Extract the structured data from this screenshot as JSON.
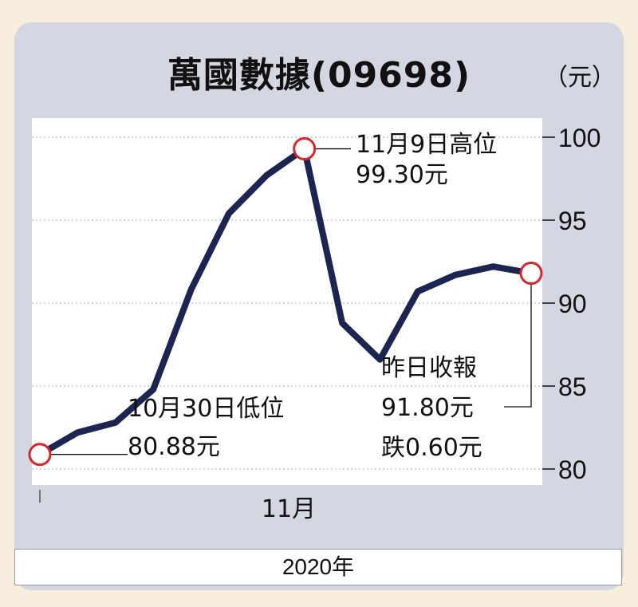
{
  "title": "萬國數據(09698)",
  "unit": "（元）",
  "footer_year": "2020年",
  "annotations": {
    "high_line1": "11月9日高位",
    "high_line2": "99.30元",
    "low_line1": "10月30日低位",
    "low_line2": "80.88元",
    "close_line1": "昨日收報",
    "close_line2": "91.80元",
    "close_line3": "跌0.60元"
  },
  "colors": {
    "line": "#1c2552",
    "marker": "#d6262b",
    "panel": "#d4d6e2",
    "page": "#f7eede"
  },
  "chart_data": {
    "type": "line",
    "title": "萬國數據(09698)",
    "ylabel": "（元）",
    "ylim": [
      80,
      100
    ],
    "yticks": [
      80,
      85,
      90,
      95,
      100
    ],
    "xtick_labels": [
      "11月"
    ],
    "series": [
      {
        "values": [
          {
            "x": 0,
            "y": 80.88
          },
          {
            "x": 1,
            "y": 82.2
          },
          {
            "x": 2,
            "y": 82.8
          },
          {
            "x": 3,
            "y": 84.8
          },
          {
            "x": 4,
            "y": 90.8
          },
          {
            "x": 5,
            "y": 95.4
          },
          {
            "x": 6,
            "y": 97.7
          },
          {
            "x": 7,
            "y": 99.3
          },
          {
            "x": 8,
            "y": 88.8
          },
          {
            "x": 9,
            "y": 86.6
          },
          {
            "x": 10,
            "y": 90.7
          },
          {
            "x": 11,
            "y": 91.7
          },
          {
            "x": 12,
            "y": 92.2
          },
          {
            "x": 13,
            "y": 91.8
          }
        ]
      }
    ],
    "markers": [
      {
        "x": 0,
        "y": 80.88,
        "label": "10月30日低位 80.88元"
      },
      {
        "x": 7,
        "y": 99.3,
        "label": "11月9日高位 99.30元"
      },
      {
        "x": 13,
        "y": 91.8,
        "label": "昨日收報 91.80元 跌0.60元"
      }
    ]
  }
}
